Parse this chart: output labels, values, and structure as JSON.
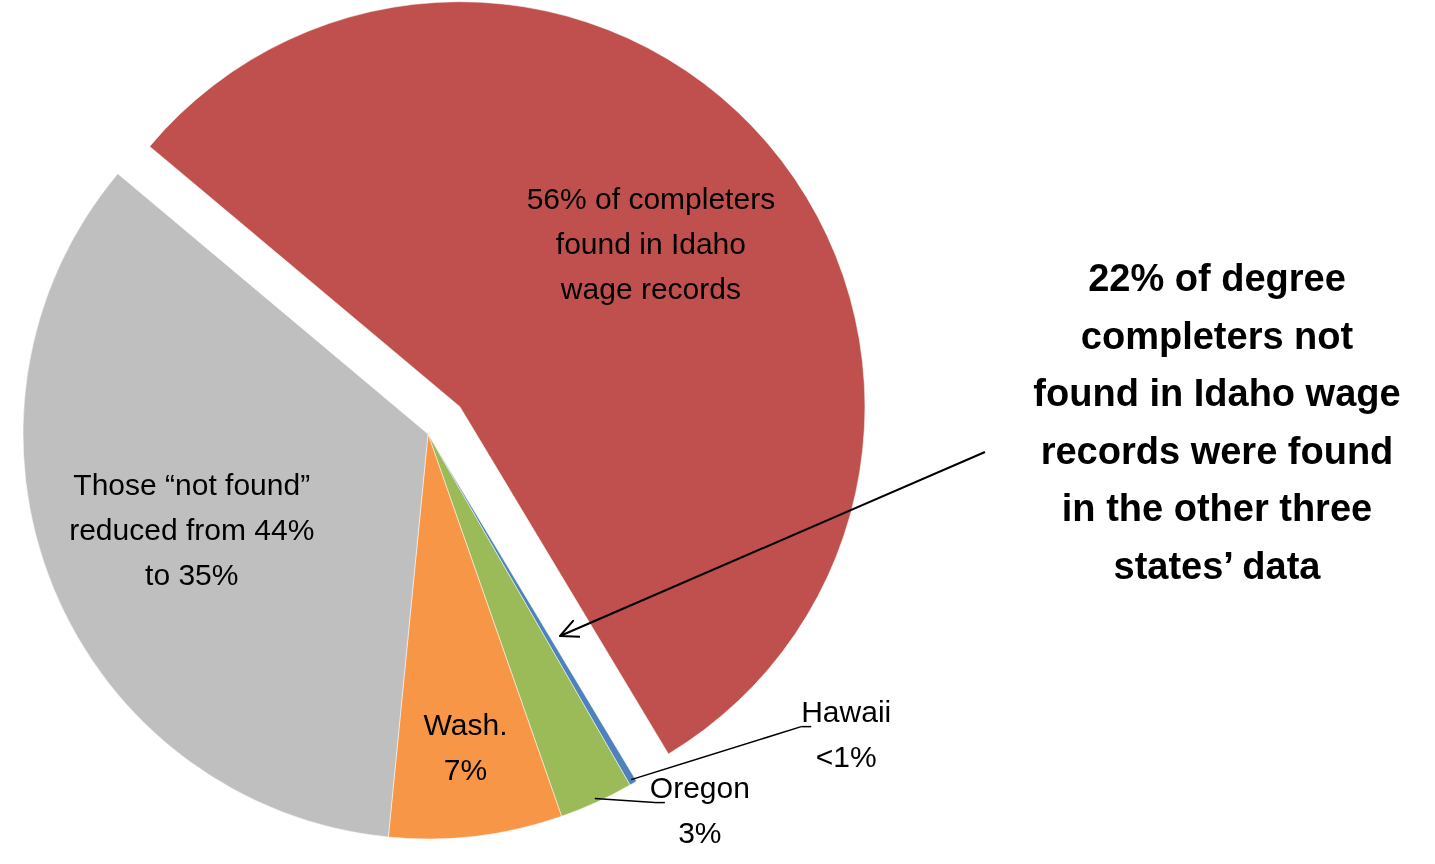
{
  "chart_data": {
    "type": "pie",
    "categories": [
      "56% of completers\nfound in Idaho\nwage records",
      "Hawaii\n<1%",
      "Oregon\n3%",
      "Wash.\n7%",
      "Those “not found”\nreduced from 44%\nto 35%"
    ],
    "values": [
      56,
      0.3,
      3,
      7,
      35
    ],
    "colors": [
      "#c0504d",
      "#4f81bd",
      "#9bbb59",
      "#f79646",
      "#bfbfbf"
    ],
    "annotations": [
      "22% of degree\ncompleters not\nfound in Idaho wage\nrecords were found\nin the other three\nstates’ data"
    ]
  }
}
